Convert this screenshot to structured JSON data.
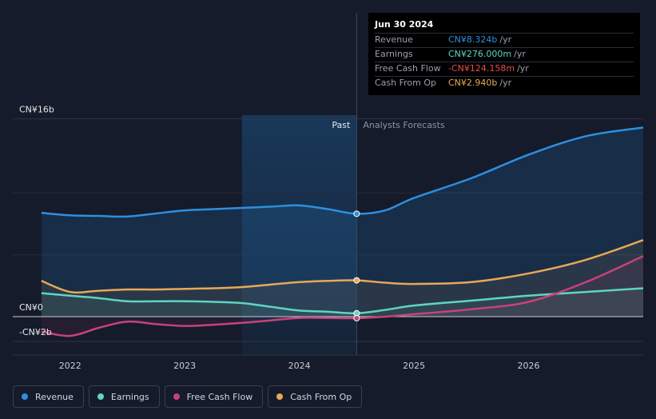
{
  "chart_data": {
    "type": "area",
    "y_unit_prefix": "CN¥",
    "ylim": [
      -3.1,
      16.3
    ],
    "xlim": [
      2021.5,
      2027.0
    ],
    "y_tick_labels": [
      {
        "value": 16,
        "label": "CN¥16b"
      },
      {
        "value": 0,
        "label": "CN¥0"
      },
      {
        "value": -2,
        "label": "-CN¥2b"
      }
    ],
    "x_tick_labels": [
      {
        "value": 2022.0,
        "label": "2022"
      },
      {
        "value": 2023.0,
        "label": "2023"
      },
      {
        "value": 2024.0,
        "label": "2024"
      },
      {
        "value": 2025.0,
        "label": "2025"
      },
      {
        "value": 2026.0,
        "label": "2026"
      }
    ],
    "past_label": "Past",
    "forecast_label": "Analysts Forecasts",
    "past_shade_start": 2023.5,
    "divider_x": 2024.5,
    "series": [
      {
        "name": "Revenue",
        "color": "#2d8fe0",
        "points": [
          [
            2021.75,
            8.4
          ],
          [
            2022.0,
            8.2
          ],
          [
            2022.25,
            8.15
          ],
          [
            2022.5,
            8.1
          ],
          [
            2022.75,
            8.35
          ],
          [
            2023.0,
            8.6
          ],
          [
            2023.25,
            8.7
          ],
          [
            2023.5,
            8.8
          ],
          [
            2023.75,
            8.9
          ],
          [
            2024.0,
            9.0
          ],
          [
            2024.25,
            8.7
          ],
          [
            2024.5,
            8.324
          ],
          [
            2024.75,
            8.6
          ],
          [
            2025.0,
            9.6
          ],
          [
            2025.5,
            11.2
          ],
          [
            2026.0,
            13.1
          ],
          [
            2026.5,
            14.6
          ],
          [
            2027.0,
            15.3
          ]
        ]
      },
      {
        "name": "Earnings",
        "color": "#5dd6c0",
        "points": [
          [
            2021.75,
            1.9
          ],
          [
            2022.0,
            1.7
          ],
          [
            2022.25,
            1.5
          ],
          [
            2022.5,
            1.25
          ],
          [
            2022.75,
            1.25
          ],
          [
            2023.0,
            1.25
          ],
          [
            2023.25,
            1.2
          ],
          [
            2023.5,
            1.1
          ],
          [
            2023.75,
            0.8
          ],
          [
            2024.0,
            0.5
          ],
          [
            2024.25,
            0.4
          ],
          [
            2024.5,
            0.276
          ],
          [
            2024.75,
            0.55
          ],
          [
            2025.0,
            0.9
          ],
          [
            2025.5,
            1.3
          ],
          [
            2026.0,
            1.7
          ],
          [
            2026.5,
            2.0
          ],
          [
            2027.0,
            2.3
          ]
        ]
      },
      {
        "name": "Free Cash Flow",
        "color": "#c8427a",
        "points": [
          [
            2021.75,
            -1.2
          ],
          [
            2022.0,
            -1.55
          ],
          [
            2022.25,
            -0.9
          ],
          [
            2022.5,
            -0.4
          ],
          [
            2022.75,
            -0.6
          ],
          [
            2023.0,
            -0.75
          ],
          [
            2023.25,
            -0.65
          ],
          [
            2023.5,
            -0.5
          ],
          [
            2023.75,
            -0.3
          ],
          [
            2024.0,
            -0.1
          ],
          [
            2024.25,
            -0.1
          ],
          [
            2024.5,
            -0.124
          ],
          [
            2024.75,
            0.0
          ],
          [
            2025.0,
            0.2
          ],
          [
            2025.5,
            0.6
          ],
          [
            2026.0,
            1.2
          ],
          [
            2026.5,
            2.8
          ],
          [
            2027.0,
            4.9
          ]
        ]
      },
      {
        "name": "Cash From Op",
        "color": "#e8a857",
        "points": [
          [
            2021.75,
            2.9
          ],
          [
            2022.0,
            2.0
          ],
          [
            2022.25,
            2.1
          ],
          [
            2022.5,
            2.2
          ],
          [
            2022.75,
            2.2
          ],
          [
            2023.0,
            2.25
          ],
          [
            2023.25,
            2.3
          ],
          [
            2023.5,
            2.4
          ],
          [
            2023.75,
            2.6
          ],
          [
            2024.0,
            2.8
          ],
          [
            2024.25,
            2.9
          ],
          [
            2024.5,
            2.94
          ],
          [
            2024.75,
            2.75
          ],
          [
            2025.0,
            2.65
          ],
          [
            2025.5,
            2.8
          ],
          [
            2026.0,
            3.5
          ],
          [
            2026.5,
            4.6
          ],
          [
            2027.0,
            6.2
          ]
        ]
      }
    ],
    "tooltip": {
      "date": "Jun 30 2024",
      "rows": [
        {
          "label": "Revenue",
          "value": "CN¥8.324b",
          "unit": "/yr",
          "color": "#2d8fe0"
        },
        {
          "label": "Earnings",
          "value": "CN¥276.000m",
          "unit": "/yr",
          "color": "#5dd6c0"
        },
        {
          "label": "Free Cash Flow",
          "value": "-CN¥124.158m",
          "unit": "/yr",
          "color": "#e84c4c"
        },
        {
          "label": "Cash From Op",
          "value": "CN¥2.940b",
          "unit": "/yr",
          "color": "#e8a857"
        }
      ]
    }
  },
  "legend": [
    {
      "label": "Revenue",
      "color": "#2d8fe0"
    },
    {
      "label": "Earnings",
      "color": "#5dd6c0"
    },
    {
      "label": "Free Cash Flow",
      "color": "#c8427a"
    },
    {
      "label": "Cash From Op",
      "color": "#e8a857"
    }
  ]
}
